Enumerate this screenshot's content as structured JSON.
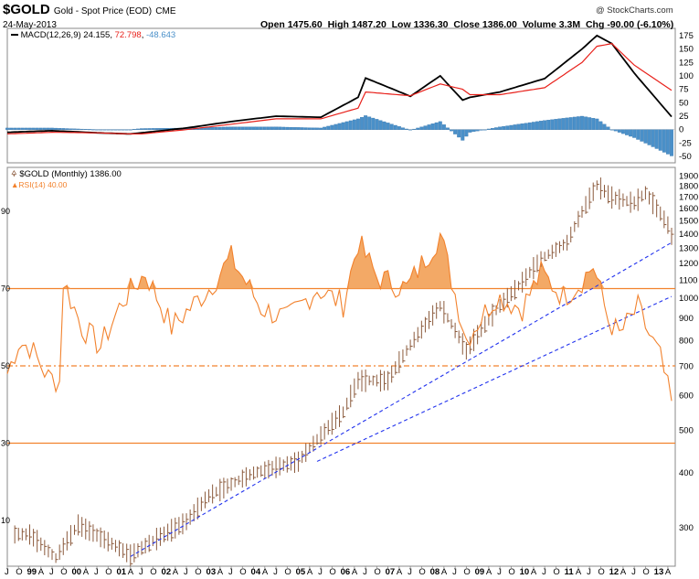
{
  "header": {
    "symbol": "$GOLD",
    "name": "Gold - Spot Price (EOD)",
    "exchange": "CME",
    "date": "24-May-2013",
    "open_label": "Open",
    "open": "1475.60",
    "high_label": "High",
    "high": "1487.20",
    "low_label": "Low",
    "low": "1336.30",
    "close_label": "Close",
    "close": "1386.00",
    "volume_label": "Volume",
    "volume": "3.3M",
    "chg_label": "Chg",
    "chg": "-90.00 (-6.10%)",
    "copyright": "@ StockCharts.com"
  },
  "chart_data": {
    "type": "line",
    "time_axis": {
      "start": "1998-07",
      "end": "2013-05",
      "tick_labels": [
        "J",
        "O",
        "99",
        "A",
        "J",
        "O",
        "00",
        "A",
        "J",
        "O",
        "01",
        "A",
        "J",
        "O",
        "02",
        "A",
        "J",
        "O",
        "03",
        "A",
        "J",
        "O",
        "04",
        "A",
        "J",
        "O",
        "05",
        "A",
        "J",
        "O",
        "06",
        "A",
        "J",
        "O",
        "07",
        "A",
        "J",
        "O",
        "08",
        "A",
        "J",
        "O",
        "09",
        "A",
        "J",
        "O",
        "10",
        "A",
        "J",
        "O",
        "11",
        "A",
        "J",
        "O",
        "12",
        "A",
        "J",
        "O",
        "13",
        "A"
      ]
    },
    "macd_panel": {
      "legend": "MACD(12,26,9)",
      "macd_value": "24.155",
      "signal_value": "72.798",
      "histogram_value": "-48.643",
      "y_ticks": [
        175,
        150,
        125,
        100,
        75,
        50,
        25,
        0,
        -25,
        -50
      ],
      "ylim": [
        -55,
        185
      ],
      "colors": {
        "macd": "#000000",
        "signal": "#e8201a",
        "histogram": "#4a90c9"
      },
      "x": [
        "1998-07",
        "1999-07",
        "2000-07",
        "2001-04",
        "2001-07",
        "2002-07",
        "2003-07",
        "2004-07",
        "2005-07",
        "2006-05",
        "2006-07",
        "2007-07",
        "2008-03",
        "2008-09",
        "2008-11",
        "2009-07",
        "2010-07",
        "2011-05",
        "2011-09",
        "2012-01",
        "2012-07",
        "2013-05"
      ],
      "macd": [
        -5,
        -2,
        -6,
        -8,
        -6,
        3,
        15,
        25,
        23,
        60,
        96,
        62,
        100,
        55,
        60,
        70,
        95,
        150,
        175,
        160,
        105,
        24
      ],
      "signal": [
        -8,
        -5,
        -6,
        -8,
        -8,
        0,
        10,
        20,
        20,
        40,
        70,
        63,
        85,
        75,
        65,
        65,
        78,
        125,
        155,
        160,
        120,
        73
      ]
    },
    "price_panel": {
      "legend": "$GOLD (Monthly)",
      "legend_value": "1386.00",
      "scale": "log",
      "y_ticks": [
        1900,
        1800,
        1700,
        1600,
        1500,
        1400,
        1300,
        1200,
        1100,
        1000,
        900,
        800,
        700,
        600,
        500,
        400,
        300
      ],
      "ylim": [
        250,
        1950
      ],
      "color": "#8b5a3c",
      "x": [
        "1999-01",
        "1999-08",
        "2000-02",
        "2001-04",
        "2001-10",
        "2002-07",
        "2003-01",
        "2004-01",
        "2005-01",
        "2006-01",
        "2006-05",
        "2007-01",
        "2008-03",
        "2008-10",
        "2009-06",
        "2010-01",
        "2010-06",
        "2011-01",
        "2011-09",
        "2012-01",
        "2012-07",
        "2012-10",
        "2013-04",
        "2013-05"
      ],
      "close": [
        290,
        256,
        305,
        260,
        280,
        310,
        355,
        400,
        425,
        550,
        650,
        650,
        960,
        760,
        940,
        1090,
        1230,
        1340,
        1810,
        1700,
        1650,
        1740,
        1470,
        1386
      ],
      "trendlines": [
        {
          "from": [
            "2001-04",
            258
          ],
          "to": [
            "2013-05",
            1340
          ],
          "color": "#2233ee"
        },
        {
          "from": [
            "2005-06",
            425
          ],
          "to": [
            "2013-05",
            1010
          ],
          "color": "#2233ee"
        }
      ]
    },
    "rsi_panel": {
      "legend": "RSI(14)",
      "legend_value": "40.00",
      "levels": [
        70,
        50,
        30
      ],
      "y_ticks": [
        90,
        70,
        50,
        30,
        10
      ],
      "ylim": [
        0,
        100
      ],
      "color": "#f2822d",
      "x": [
        "1998-07",
        "1998-10",
        "1999-01",
        "1999-06",
        "1999-09",
        "1999-10",
        "2000-03",
        "2000-08",
        "2001-02",
        "2001-08",
        "2002-03",
        "2003-01",
        "2003-07",
        "2004-03",
        "2004-10",
        "2005-06",
        "2006-01",
        "2006-05",
        "2006-10",
        "2007-06",
        "2008-03",
        "2008-10",
        "2009-06",
        "2010-01",
        "2010-06",
        "2010-12",
        "2011-04",
        "2011-08",
        "2011-12",
        "2012-03",
        "2012-08",
        "2012-11",
        "2013-02",
        "2013-05"
      ],
      "rsi": [
        48,
        56,
        55,
        47,
        46,
        72,
        60,
        55,
        67,
        74,
        60,
        70,
        78,
        65,
        62,
        70,
        66,
        82,
        73,
        70,
        84,
        57,
        68,
        65,
        74,
        68,
        71,
        76,
        62,
        58,
        65,
        58,
        52,
        40
      ]
    }
  }
}
